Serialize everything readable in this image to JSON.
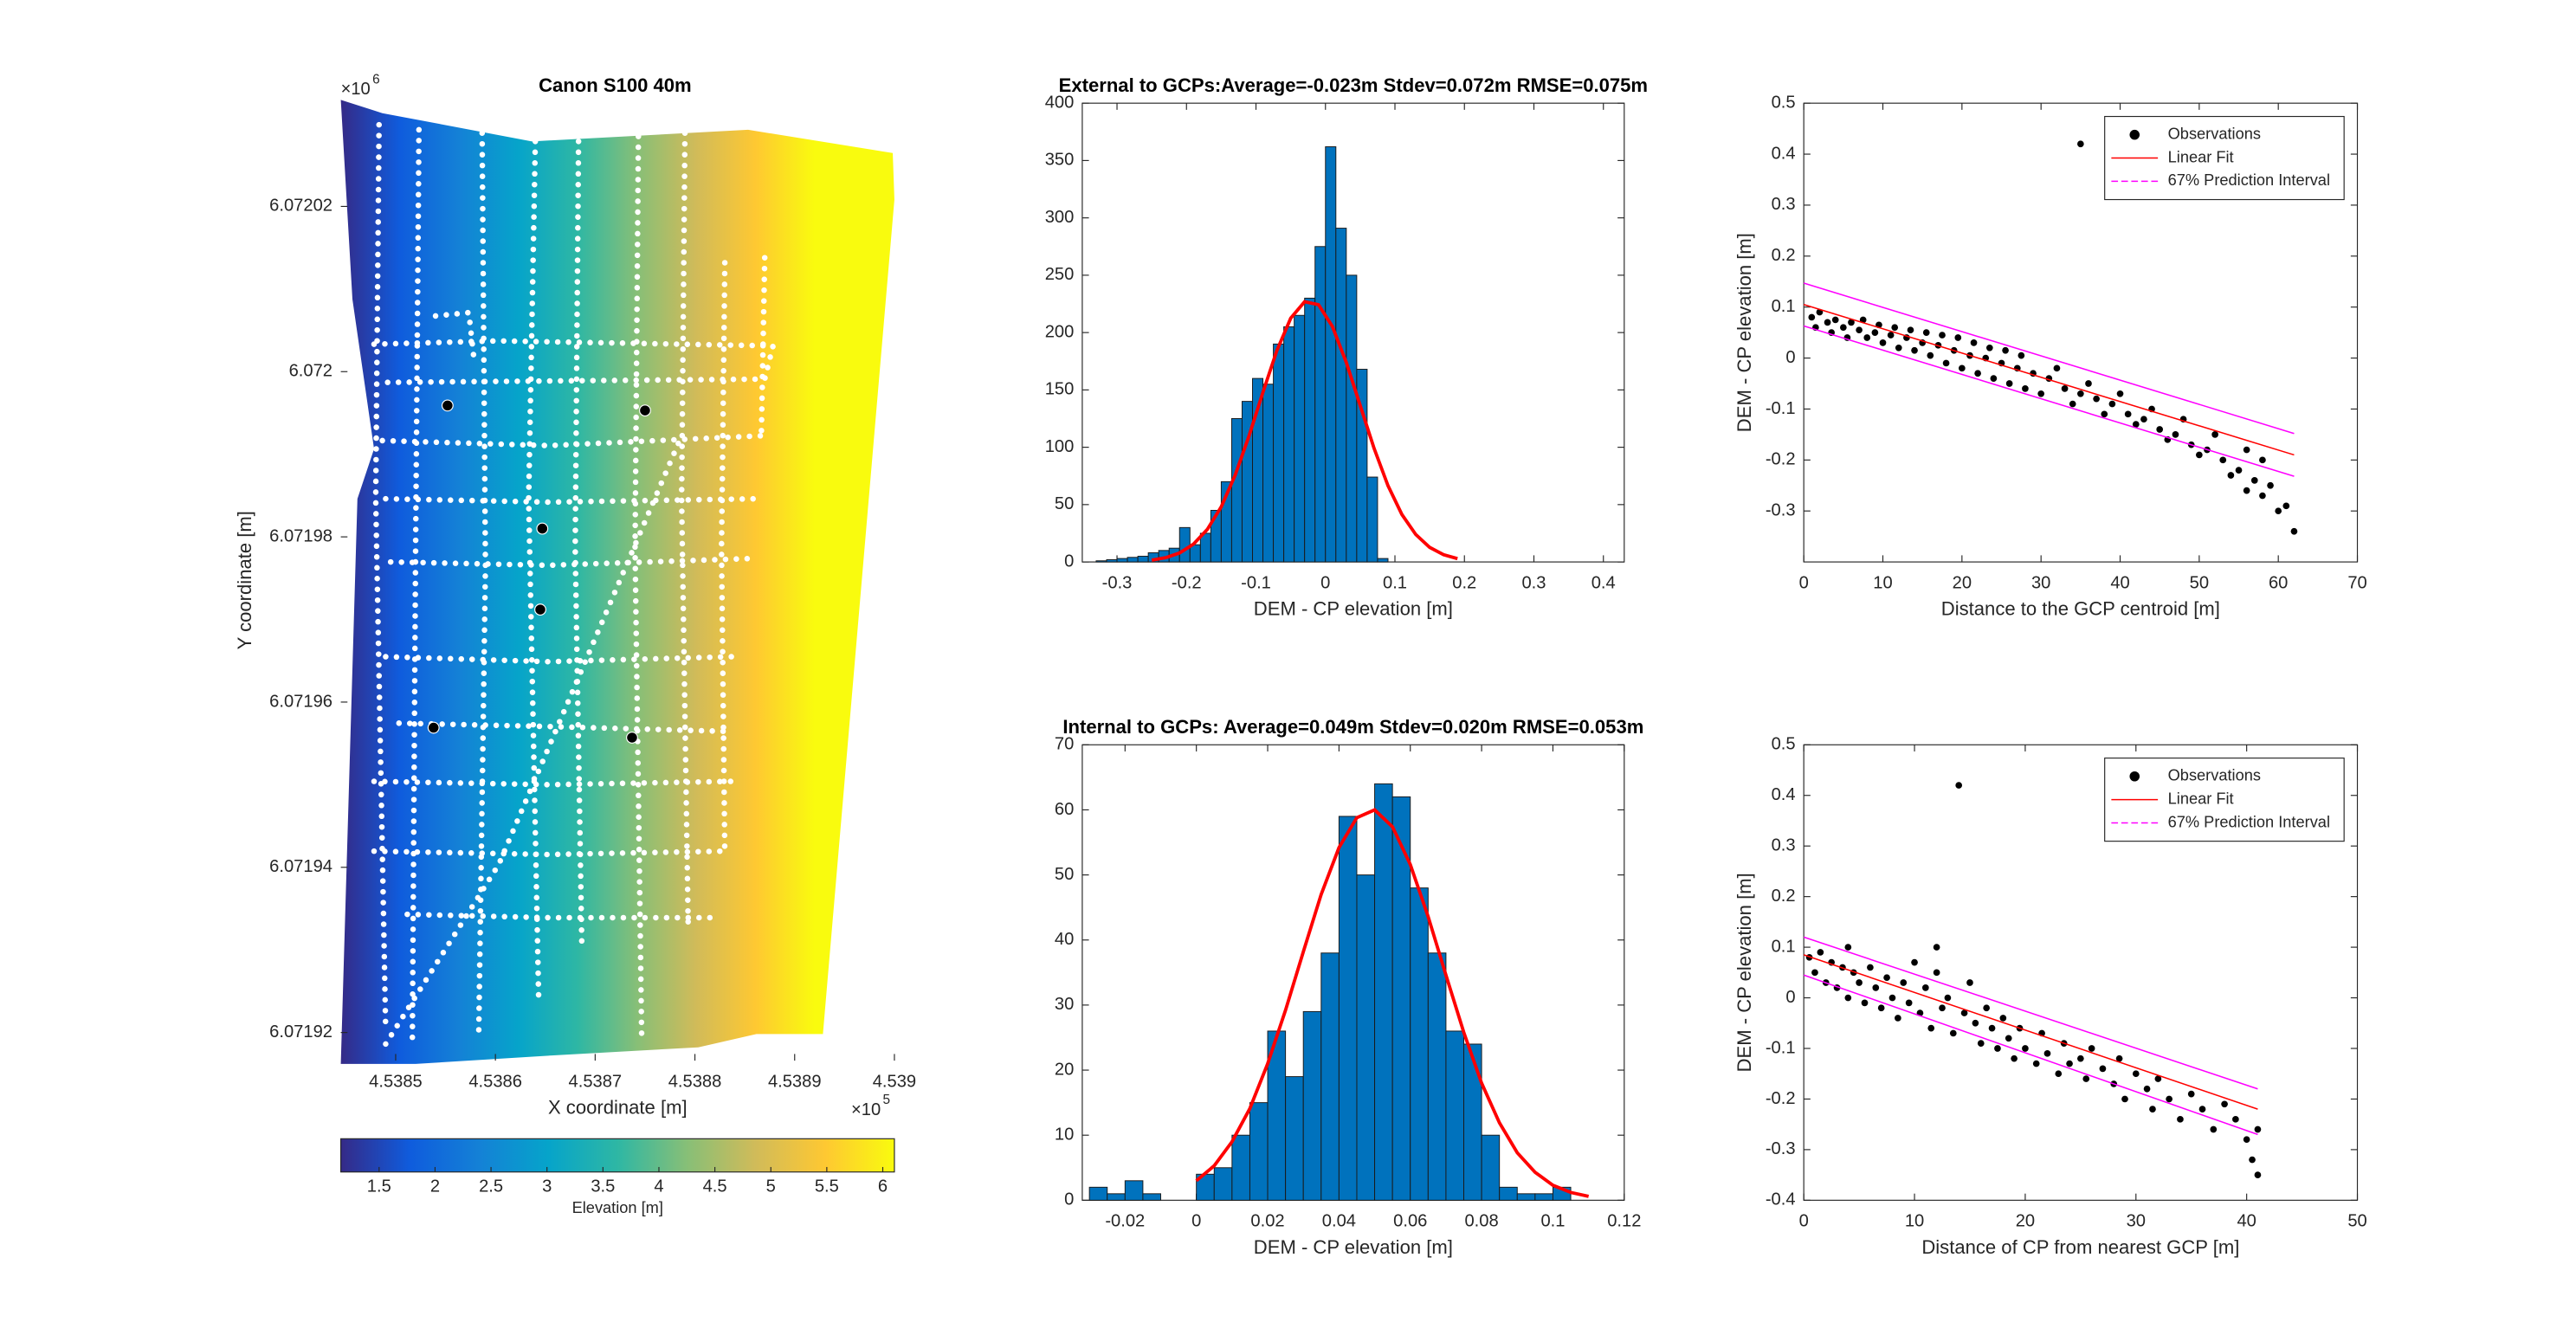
{
  "chart_data": [
    {
      "type": "map",
      "title": "Canon S100 40m",
      "xlabel": "X coordinate [m]",
      "ylabel": "Y coordinate [m]",
      "exponent_base": "×10",
      "x_exponent": 5,
      "y_exponent": 6,
      "xlim": [
        453844.5,
        453900
      ],
      "ylim": [
        6071916.6,
        6072032.9
      ],
      "xticks": [
        {
          "value": 453850,
          "label": "4.5385"
        },
        {
          "value": 453860,
          "label": "4.5386"
        },
        {
          "value": 453870,
          "label": "4.5387"
        },
        {
          "value": 453880,
          "label": "4.5388"
        },
        {
          "value": 453890,
          "label": "4.5389"
        },
        {
          "value": 453900,
          "label": "4.539"
        }
      ],
      "yticks": [
        {
          "value": 6071920,
          "label": "6.07192"
        },
        {
          "value": 6071940,
          "label": "6.07194"
        },
        {
          "value": 6071960,
          "label": "6.07196"
        },
        {
          "value": 6071980,
          "label": "6.07198"
        },
        {
          "value": 6072000,
          "label": "6.072"
        },
        {
          "value": 6072020,
          "label": "6.07202"
        }
      ],
      "points": {
        "color": "#000000",
        "x": [
          453855.2,
          453875,
          453864.7,
          453864.5,
          453853.8,
          453873.7
        ],
        "y": [
          6071995.9,
          6071995.3,
          6071981.0,
          6071971.2,
          6071956.9,
          6071955.7
        ]
      },
      "colorbar": {
        "label": "Elevation [m]",
        "lim": [
          1.158,
          6.104
        ],
        "ticks": [
          1.5,
          2,
          2.5,
          3,
          3.5,
          4,
          4.5,
          5,
          5.5,
          6
        ],
        "colormap": [
          "#352a87",
          "#0f5cdd",
          "#1481d6",
          "#06a4ca",
          "#2eb7a4",
          "#87bf77",
          "#d1bb59",
          "#fec832",
          "#f9fb0e"
        ]
      }
    },
    {
      "type": "histogram",
      "title": "External to GCPs:Average=-0.023m Stdev=0.072m RMSE=0.075m",
      "xlabel": "DEM - CP elevation [m]",
      "color": "#0072bd",
      "xlim": [
        -0.35,
        0.43
      ],
      "ylim": [
        0,
        400
      ],
      "xticks": [
        -0.3,
        -0.2,
        -0.1,
        0,
        0.1,
        0.2,
        0.3,
        0.4
      ],
      "yticks": [
        0,
        50,
        100,
        150,
        200,
        250,
        300,
        350,
        400
      ],
      "bins": [
        -0.33,
        -0.315,
        -0.3,
        -0.285,
        -0.27,
        -0.255,
        -0.24,
        -0.225,
        -0.21,
        -0.195,
        -0.18,
        -0.165,
        -0.15,
        -0.135,
        -0.12,
        -0.105,
        -0.09,
        -0.075,
        -0.06,
        -0.045,
        -0.03,
        -0.015,
        0,
        0.015,
        0.03,
        0.045,
        0.06,
        0.075,
        0.09
      ],
      "values": [
        1,
        2,
        3,
        4,
        5,
        8,
        10,
        12,
        30,
        15,
        25,
        45,
        70,
        125,
        140,
        160,
        155,
        190,
        205,
        215,
        230,
        275,
        362,
        291,
        250,
        168,
        74,
        3
      ],
      "fit": {
        "color": "#ff0000",
        "x": [
          -0.25,
          -0.23,
          -0.21,
          -0.19,
          -0.17,
          -0.15,
          -0.13,
          -0.11,
          -0.09,
          -0.07,
          -0.05,
          -0.03,
          -0.01,
          0.01,
          0.03,
          0.05,
          0.07,
          0.09,
          0.11,
          0.13,
          0.15,
          0.17,
          0.19
        ],
        "values": [
          1.6,
          3.7,
          7.8,
          15.5,
          28.4,
          48.1,
          75.6,
          109.9,
          147.9,
          184.2,
          212.5,
          226.9,
          224.3,
          205.3,
          173.9,
          136.4,
          99.0,
          66.5,
          41.4,
          23.9,
          12.7,
          6.3,
          2.9
        ]
      }
    },
    {
      "type": "histogram",
      "title": "Internal to GCPs: Average=0.049m Stdev=0.020m RMSE=0.053m",
      "xlabel": "DEM - CP elevation [m]",
      "color": "#0072bd",
      "xlim": [
        -0.032,
        0.12
      ],
      "ylim": [
        0,
        70
      ],
      "xticks": [
        -0.02,
        0,
        0.02,
        0.04,
        0.06,
        0.08,
        0.1,
        0.12
      ],
      "yticks": [
        0,
        10,
        20,
        30,
        40,
        50,
        60,
        70
      ],
      "bins": [
        -0.03,
        -0.025,
        -0.02,
        -0.015,
        -0.01,
        -0.005,
        0,
        0.005,
        0.01,
        0.015,
        0.02,
        0.025,
        0.03,
        0.035,
        0.04,
        0.045,
        0.05,
        0.055,
        0.06,
        0.065,
        0.07,
        0.075,
        0.08,
        0.085,
        0.09,
        0.095,
        0.1,
        0.105
      ],
      "values": [
        2,
        1,
        3,
        1,
        0,
        0,
        4,
        5,
        10,
        15,
        26,
        19,
        29,
        38,
        59,
        50,
        64,
        62,
        48,
        38,
        26,
        24,
        10,
        2,
        1,
        1,
        2
      ],
      "fit": {
        "color": "#ff0000",
        "x": [
          0,
          0.005,
          0.01,
          0.015,
          0.02,
          0.025,
          0.03,
          0.035,
          0.04,
          0.045,
          0.05,
          0.055,
          0.06,
          0.065,
          0.07,
          0.075,
          0.08,
          0.085,
          0.09,
          0.095,
          0.1,
          0.105,
          0.11
        ],
        "values": [
          3.0,
          5.3,
          9.0,
          14.1,
          21.0,
          29.2,
          38.2,
          47.0,
          54.2,
          58.8,
          60.0,
          57.4,
          51.6,
          43.6,
          34.6,
          25.8,
          18.0,
          11.9,
          7.3,
          4.3,
          2.3,
          1.2,
          0.6
        ]
      }
    },
    {
      "type": "scatter",
      "xlabel": "Distance to the GCP centroid [m]",
      "ylabel": "DEM - CP elevation [m]",
      "legend": "upper right",
      "xlim": [
        0,
        70
      ],
      "ylim": [
        -0.4,
        0.5
      ],
      "xticks": [
        0,
        10,
        20,
        30,
        40,
        50,
        60,
        70
      ],
      "yticks": [
        -0.3,
        -0.2,
        -0.1,
        0,
        0.1,
        0.2,
        0.3,
        0.4,
        0.5
      ],
      "series": [
        {
          "name": "Observations",
          "color": "#000000",
          "style": "marker",
          "x": [
            1,
            1.5,
            2,
            3,
            3.5,
            4,
            5,
            5.5,
            6,
            7,
            7.5,
            8,
            9,
            9.5,
            10,
            11,
            11.5,
            12,
            13,
            13.5,
            14,
            15,
            15.5,
            16,
            17,
            17.5,
            18,
            19,
            19.5,
            20,
            21,
            21.5,
            22,
            23,
            23.5,
            24,
            25,
            25.5,
            26,
            27,
            27.5,
            28,
            29,
            30,
            31,
            32,
            33,
            34,
            35,
            35,
            36,
            37,
            38,
            39,
            40,
            41,
            42,
            43,
            44,
            45,
            46,
            47,
            48,
            49,
            50,
            51,
            52,
            53,
            54,
            55,
            56,
            57,
            58,
            59,
            60,
            61,
            62,
            56,
            58
          ],
          "values": [
            0.08,
            0.06,
            0.09,
            0.07,
            0.05,
            0.075,
            0.06,
            0.04,
            0.07,
            0.055,
            0.075,
            0.04,
            0.05,
            0.065,
            0.03,
            0.045,
            0.06,
            0.02,
            0.04,
            0.055,
            0.015,
            0.03,
            0.05,
            0.005,
            0.025,
            0.045,
            -0.01,
            0.015,
            0.04,
            -0.02,
            0.005,
            0.03,
            -0.03,
            0,
            0.02,
            -0.04,
            -0.01,
            0.015,
            -0.05,
            -0.02,
            0.005,
            -0.06,
            -0.03,
            -0.07,
            -0.04,
            -0.02,
            -0.06,
            -0.09,
            -0.07,
            0.42,
            -0.05,
            -0.08,
            -0.11,
            -0.09,
            -0.07,
            -0.11,
            -0.13,
            -0.12,
            -0.1,
            -0.14,
            -0.16,
            -0.15,
            -0.12,
            -0.17,
            -0.19,
            -0.18,
            -0.15,
            -0.2,
            -0.23,
            -0.22,
            -0.18,
            -0.24,
            -0.27,
            -0.25,
            -0.3,
            -0.29,
            -0.34,
            -0.26,
            -0.2
          ]
        },
        {
          "name": "Linear Fit",
          "color": "#ff0000",
          "style": "line",
          "x": [
            0,
            62
          ],
          "values": [
            0.105,
            -0.19
          ]
        },
        {
          "name": "67% Prediction Interval",
          "color": "#ff00ff",
          "style": "dashed",
          "x": [
            0,
            62
          ],
          "values": [
            0.147,
            -0.148
          ],
          "lower": [
            0.063,
            -0.232
          ]
        }
      ]
    },
    {
      "type": "scatter",
      "xlabel": "Distance of CP from nearest GCP [m]",
      "ylabel": "DEM - CP elevation [m]",
      "legend": "upper right",
      "xlim": [
        0,
        50
      ],
      "ylim": [
        -0.4,
        0.5
      ],
      "xticks": [
        0,
        10,
        20,
        30,
        40,
        50
      ],
      "yticks": [
        -0.4,
        -0.3,
        -0.2,
        -0.1,
        0,
        0.1,
        0.2,
        0.3,
        0.4,
        0.5
      ],
      "series": [
        {
          "name": "Observations",
          "color": "#000000",
          "style": "marker",
          "x": [
            0.5,
            1,
            1.5,
            2,
            2.5,
            3,
            3.5,
            4,
            4.5,
            5,
            5.5,
            6,
            6.5,
            7,
            7.5,
            8,
            8.5,
            9,
            9.5,
            10,
            10.5,
            11,
            11.5,
            12,
            12.5,
            13,
            13.5,
            14,
            14.5,
            15,
            15.5,
            16,
            16.5,
            17,
            17.5,
            18,
            18.5,
            19,
            19.5,
            20,
            21,
            21.5,
            22,
            23,
            23.5,
            24,
            25,
            25.5,
            26,
            27,
            28,
            28.5,
            29,
            30,
            31,
            31.5,
            32,
            33,
            34,
            35,
            36,
            37,
            38,
            39,
            40,
            40.5,
            41,
            41,
            12,
            4
          ],
          "values": [
            0.08,
            0.05,
            0.09,
            0.03,
            0.07,
            0.02,
            0.06,
            0.0,
            0.05,
            0.03,
            -0.01,
            0.06,
            0.02,
            -0.02,
            0.04,
            0.0,
            -0.04,
            0.03,
            -0.01,
            0.07,
            -0.03,
            0.02,
            -0.06,
            0.05,
            -0.02,
            0.0,
            -0.07,
            0.42,
            -0.03,
            0.03,
            -0.05,
            -0.09,
            -0.02,
            -0.06,
            -0.1,
            -0.04,
            -0.08,
            -0.12,
            -0.06,
            -0.1,
            -0.13,
            -0.07,
            -0.11,
            -0.15,
            -0.09,
            -0.13,
            -0.12,
            -0.16,
            -0.1,
            -0.14,
            -0.17,
            -0.12,
            -0.2,
            -0.15,
            -0.18,
            -0.22,
            -0.16,
            -0.2,
            -0.24,
            -0.19,
            -0.22,
            -0.26,
            -0.21,
            -0.24,
            -0.28,
            -0.32,
            -0.35,
            -0.26,
            0.1,
            0.1
          ]
        },
        {
          "name": "Linear Fit",
          "color": "#ff0000",
          "style": "line",
          "x": [
            0,
            41
          ],
          "values": [
            0.085,
            -0.22
          ]
        },
        {
          "name": "67% Prediction Interval",
          "color": "#ff00ff",
          "style": "dashed",
          "x": [
            0,
            41
          ],
          "values": [
            0.12,
            -0.18
          ],
          "lower": [
            0.045,
            -0.27
          ]
        }
      ]
    }
  ]
}
